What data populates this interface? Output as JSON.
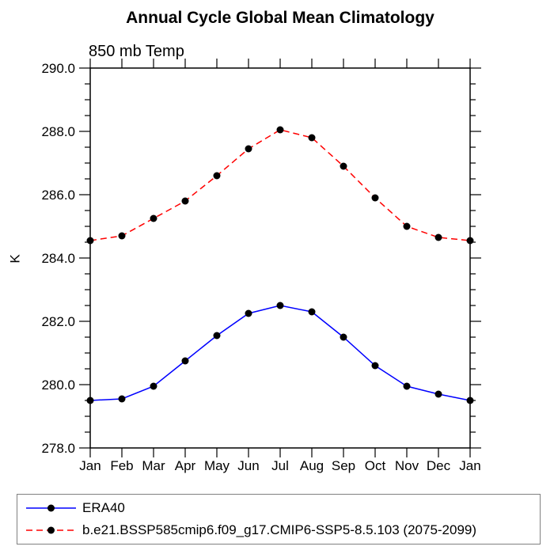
{
  "chart_data": {
    "type": "line",
    "title": "Annual Cycle Global Mean Climatology",
    "subtitle": "850 mb Temp",
    "ylabel": "K",
    "categories": [
      "Jan",
      "Feb",
      "Mar",
      "Apr",
      "May",
      "Jun",
      "Jul",
      "Aug",
      "Sep",
      "Oct",
      "Nov",
      "Dec",
      "Jan"
    ],
    "series": [
      {
        "name": "ERA40",
        "color": "#0000ff",
        "line_style": "solid",
        "dash": "",
        "marker": "circle",
        "marker_color": "#000000",
        "values": [
          279.5,
          279.55,
          279.95,
          280.75,
          281.55,
          282.25,
          282.5,
          282.3,
          281.5,
          280.6,
          279.95,
          279.7,
          279.5
        ]
      },
      {
        "name": "b.e21.BSSP585cmip6.f09_g17.CMIP6-SSP5-8.5.103 (2075-2099)",
        "color": "#ff0000",
        "line_style": "dashed",
        "dash": "8,5",
        "marker": "circle",
        "marker_color": "#000000",
        "values": [
          284.55,
          284.7,
          285.25,
          285.8,
          286.6,
          287.45,
          288.05,
          287.8,
          286.9,
          285.9,
          285.0,
          284.65,
          284.55
        ]
      }
    ],
    "ylim": [
      278.0,
      290.0
    ],
    "y_major_values": [
      278,
      280,
      282,
      284,
      286,
      288,
      290
    ],
    "y_tick_labels": [
      "278.0",
      "280.0",
      "282.0",
      "284.0",
      "286.0",
      "288.0",
      "290.0"
    ],
    "y_minor_step": 0.5,
    "grid": false,
    "legend_position": "bottom-left",
    "axis_color": "#000000"
  }
}
